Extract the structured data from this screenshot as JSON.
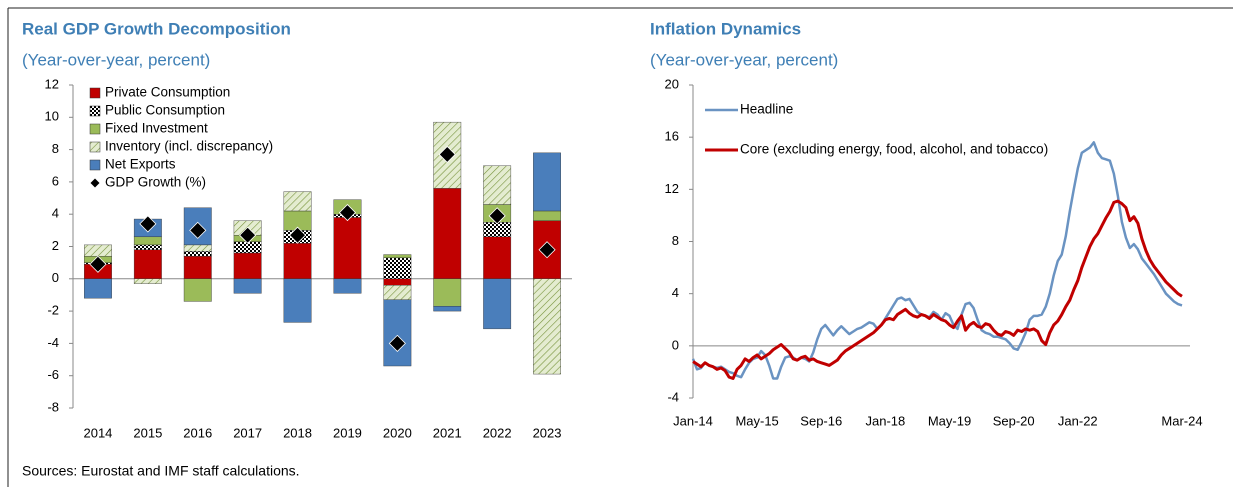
{
  "chart_data": [
    {
      "type": "bar",
      "stacked": true,
      "title": "Real GDP Growth Decomposition",
      "subtitle": "(Year-over-year, percent)",
      "categories": [
        "2014",
        "2015",
        "2016",
        "2017",
        "2018",
        "2019",
        "2020",
        "2021",
        "2022",
        "2023"
      ],
      "ylim": [
        -8,
        12
      ],
      "yticks": [
        -8,
        -6,
        -4,
        -2,
        0,
        2,
        4,
        6,
        8,
        10,
        12
      ],
      "legend": "upper left",
      "series": [
        {
          "name": "Private Consumption",
          "color": "#c00000",
          "values": [
            0.9,
            1.8,
            1.4,
            1.6,
            2.2,
            3.8,
            -0.4,
            5.6,
            2.6,
            3.6
          ]
        },
        {
          "name": "Public Consumption",
          "color": "#000000",
          "pattern": "checker",
          "values": [
            0.1,
            0.3,
            0.3,
            0.7,
            0.8,
            0.2,
            1.3,
            0,
            0.9,
            0
          ]
        },
        {
          "name": "Fixed Investment",
          "color": "#9bbb59",
          "values": [
            0.4,
            0.5,
            -1.4,
            0.4,
            1.2,
            0.9,
            0.2,
            -1.7,
            1.1,
            0.6
          ]
        },
        {
          "name": "Inventory (incl. discrepancy)",
          "color": "#e4ecd0",
          "pattern": "hatch",
          "values": [
            0.7,
            -0.3,
            0.4,
            0.9,
            1.2,
            0,
            -0.9,
            4.1,
            2.4,
            -5.9
          ]
        },
        {
          "name": "Net Exports",
          "color": "#4a7ebb",
          "values": [
            -1.2,
            1.1,
            2.3,
            -0.9,
            -2.7,
            -0.9,
            -4.1,
            -0.3,
            -3.1,
            3.6
          ]
        },
        {
          "name": "GDP Growth (%)",
          "type": "scatter",
          "marker": "diamond",
          "color": "#000000",
          "values": [
            0.9,
            3.4,
            3.0,
            2.7,
            2.7,
            4.1,
            -4.0,
            7.7,
            3.9,
            1.8
          ]
        }
      ]
    },
    {
      "type": "line",
      "title": "Inflation Dynamics",
      "subtitle": "(Year-over-year, percent)",
      "categories": [
        "Jan-14",
        null,
        null,
        null,
        null,
        null,
        null,
        null,
        null,
        null,
        null,
        null,
        null,
        null,
        null,
        null,
        "May-15",
        null,
        null,
        null,
        null,
        null,
        null,
        null,
        null,
        null,
        null,
        null,
        null,
        null,
        null,
        null,
        "Sep-16",
        null,
        null,
        null,
        null,
        null,
        null,
        null,
        null,
        null,
        null,
        null,
        null,
        null,
        null,
        null,
        "Jan-18",
        null,
        null,
        null,
        null,
        null,
        null,
        null,
        null,
        null,
        null,
        null,
        null,
        null,
        null,
        null,
        "May-19",
        null,
        null,
        null,
        null,
        null,
        null,
        null,
        null,
        null,
        null,
        null,
        null,
        null,
        null,
        null,
        "Sep-20",
        null,
        null,
        null,
        null,
        null,
        null,
        null,
        null,
        null,
        null,
        null,
        null,
        null,
        null,
        null,
        "Jan-22",
        null,
        null,
        null,
        null,
        null,
        null,
        null,
        null,
        null,
        null,
        null,
        null,
        null,
        null,
        null,
        null,
        null,
        null,
        null,
        null,
        null,
        null,
        null,
        null,
        null,
        "Mar-24"
      ],
      "ylim": [
        -4,
        20
      ],
      "yticks": [
        -4,
        0,
        4,
        8,
        12,
        16,
        20
      ],
      "legend": "upper left",
      "series": [
        {
          "name": "Headline",
          "color": "#6a93c2",
          "values": [
            -1.0,
            -1.8,
            -1.7,
            -1.3,
            -1.5,
            -1.6,
            -1.7,
            -1.6,
            -1.8,
            -2.0,
            -2.1,
            -2.3,
            -2.4,
            -1.8,
            -1.3,
            -1.0,
            -0.9,
            -0.4,
            -0.7,
            -1.5,
            -2.5,
            -2.5,
            -1.6,
            -0.9,
            -0.8,
            -0.9,
            -1.1,
            -0.9,
            -1.0,
            -1.2,
            -0.5,
            0.5,
            1.3,
            1.6,
            1.2,
            0.8,
            1.2,
            1.5,
            1.2,
            0.9,
            1.1,
            1.3,
            1.4,
            1.6,
            1.8,
            1.7,
            1.3,
            1.6,
            2.1,
            2.6,
            3.1,
            3.6,
            3.7,
            3.5,
            3.6,
            3.1,
            2.6,
            2.4,
            2.3,
            2.2,
            2.6,
            2.4,
            2.0,
            2.5,
            2.3,
            1.6,
            1.3,
            2.4,
            3.2,
            3.3,
            2.9,
            2.0,
            1.2,
            1.0,
            0.9,
            0.7,
            0.7,
            0.6,
            0.5,
            0.2,
            -0.2,
            -0.3,
            0.3,
            1.0,
            2.0,
            2.3,
            2.3,
            2.4,
            3.0,
            4.0,
            5.4,
            6.5,
            7.0,
            8.4,
            10.3,
            12.0,
            13.6,
            14.8,
            15.0,
            15.2,
            15.6,
            14.8,
            14.4,
            14.3,
            14.2,
            13.2,
            11.5,
            9.5,
            8.3,
            7.5,
            7.8,
            7.4,
            6.7,
            6.3,
            5.9,
            5.5,
            5.0,
            4.5,
            4.0,
            3.7,
            3.4,
            3.2,
            3.1
          ]
        },
        {
          "name": "Core (excluding energy, food, alcohol, and tobacco)",
          "color": "#c00000",
          "values": [
            -1.2,
            -1.4,
            -1.6,
            -1.3,
            -1.5,
            -1.6,
            -1.8,
            -1.7,
            -1.9,
            -2.4,
            -2.5,
            -1.8,
            -1.5,
            -1.0,
            -1.2,
            -0.9,
            -0.7,
            -1.0,
            -0.8,
            -0.6,
            -0.3,
            -0.1,
            0.1,
            -0.2,
            -0.5,
            -1.0,
            -1.1,
            -0.9,
            -0.8,
            -1.1,
            -1.0,
            -1.2,
            -1.3,
            -1.4,
            -1.5,
            -1.3,
            -1.1,
            -0.7,
            -0.4,
            -0.2,
            0.0,
            0.2,
            0.4,
            0.6,
            0.8,
            1.0,
            1.3,
            1.6,
            2.0,
            2.1,
            2.0,
            2.4,
            2.6,
            2.8,
            2.5,
            2.3,
            2.2,
            2.4,
            2.3,
            2.1,
            2.4,
            2.2,
            2.0,
            1.9,
            1.6,
            1.4,
            1.9,
            2.3,
            1.2,
            1.6,
            1.8,
            1.5,
            1.4,
            1.7,
            1.6,
            1.2,
            0.9,
            0.8,
            1.1,
            1.0,
            0.8,
            1.2,
            1.1,
            1.3,
            1.2,
            1.3,
            1.1,
            0.4,
            0.1,
            1.0,
            1.6,
            1.9,
            2.4,
            3.0,
            3.5,
            4.3,
            5.0,
            6.0,
            6.8,
            7.6,
            8.2,
            8.6,
            9.2,
            9.8,
            10.3,
            11.0,
            11.1,
            10.9,
            10.6,
            9.6,
            9.9,
            9.4,
            8.2,
            7.3,
            6.6,
            6.1,
            5.7,
            5.3,
            4.9,
            4.6,
            4.3,
            4.0,
            3.8
          ]
        }
      ]
    }
  ],
  "source": "Sources: Eurostat and IMF staff calculations."
}
